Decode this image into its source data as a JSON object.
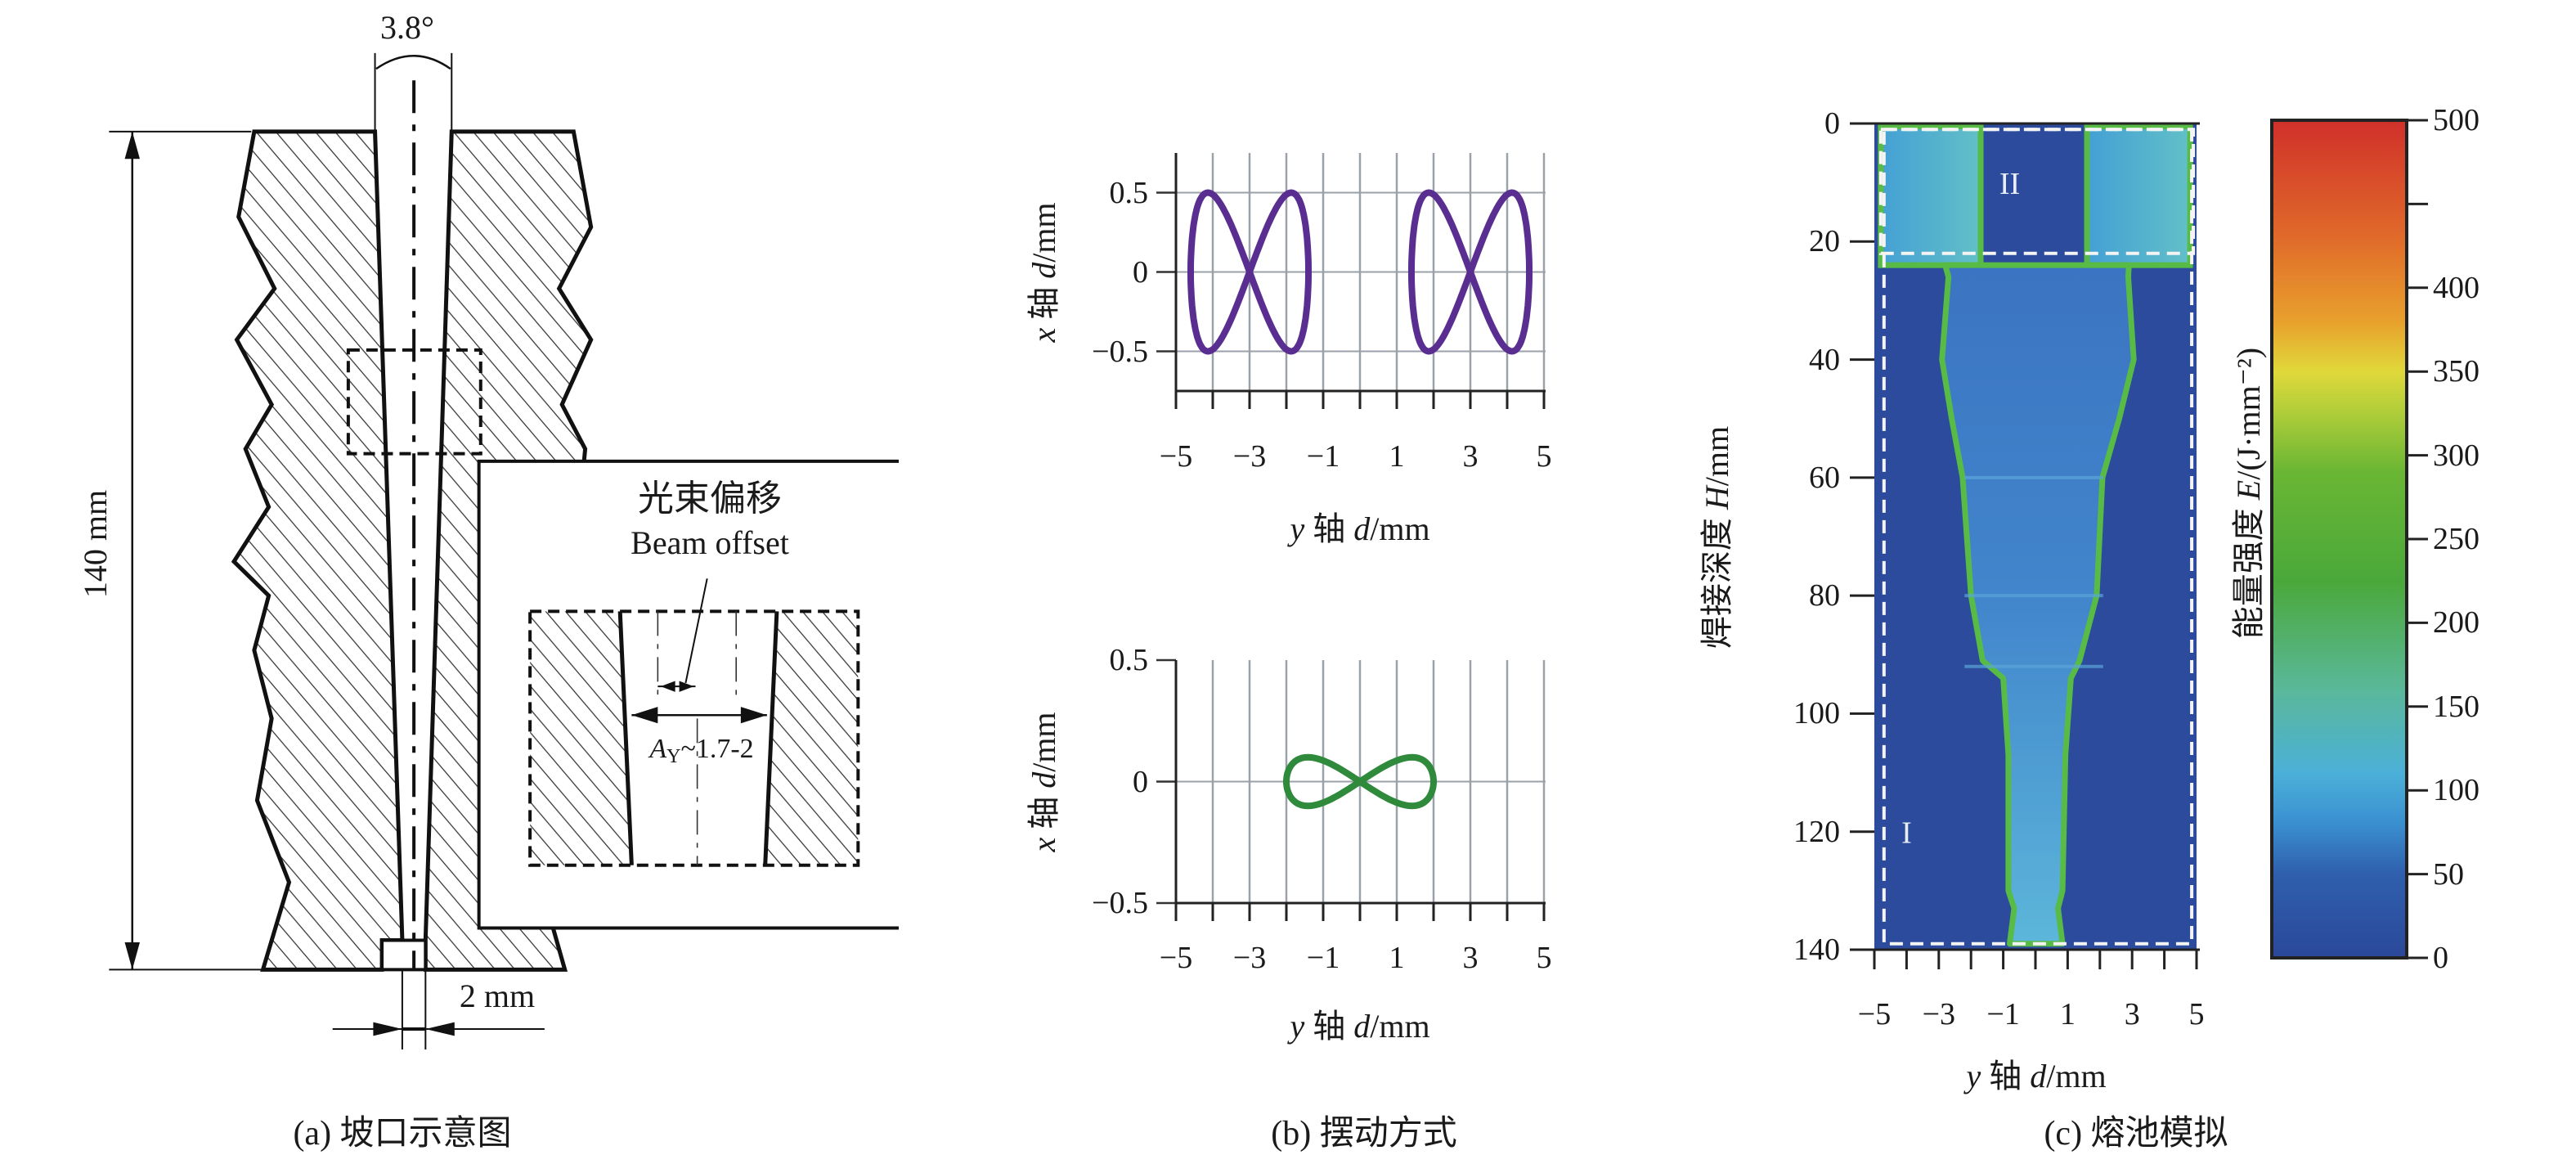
{
  "panel_a": {
    "angle_label": "3.8°",
    "depth_label": "140 mm",
    "inset_label_cn": "光束偏移",
    "inset_label_en": "Beam offset",
    "amplitude_symbol": "A",
    "amplitude_sub": "Y",
    "amplitude_value": "~1.7-2",
    "root_label": "2 mm",
    "caption": "(a) 坡口示意图"
  },
  "panel_b": {
    "caption": "(b) 摆动方式"
  },
  "panel_c": {
    "caption": "(c) 熔池模拟"
  },
  "chart_data": [
    {
      "type": "line",
      "xlabel": "y 轴 d/mm",
      "ylabel": "x 轴 d/mm",
      "xlim": [
        -5,
        5
      ],
      "ylim": [
        -0.75,
        0.75
      ],
      "xticks": [
        -5,
        -4,
        -3,
        -2,
        -1,
        0,
        1,
        2,
        3,
        4,
        5
      ],
      "xtick_labels": [
        -5,
        -3,
        -1,
        1,
        3,
        5
      ],
      "yticks": [
        0.5,
        0,
        -0.5
      ],
      "grid": true,
      "series": [
        {
          "shape": "figure-eight",
          "y_center": -3,
          "y_amplitude": 1.6,
          "x_amplitude": 0.5,
          "color": "#5a2e91"
        },
        {
          "shape": "figure-eight",
          "y_center": 3,
          "y_amplitude": 1.6,
          "x_amplitude": 0.5,
          "color": "#5a2e91"
        }
      ]
    },
    {
      "type": "line",
      "xlabel": "y 轴 d/mm",
      "ylabel": "x 轴 d/mm",
      "xlim": [
        -5,
        5
      ],
      "ylim": [
        -0.5,
        0.5
      ],
      "xticks": [
        -5,
        -4,
        -3,
        -2,
        -1,
        0,
        1,
        2,
        3,
        4,
        5
      ],
      "xtick_labels": [
        -5,
        -3,
        -1,
        1,
        3,
        5
      ],
      "yticks": [
        0.5,
        0,
        -0.5
      ],
      "grid": true,
      "series": [
        {
          "shape": "figure-eight",
          "y_center": 0,
          "y_amplitude": 2,
          "x_amplitude": 0.1,
          "color": "#2f8a3b"
        }
      ]
    },
    {
      "type": "heatmap",
      "xlabel": "y 轴 d/mm",
      "ylabel": "焊接深度 H/mm",
      "xlim": [
        -5,
        5
      ],
      "ylim": [
        0,
        140
      ],
      "y_inverted": true,
      "xticks": [
        -5,
        -4,
        -3,
        -2,
        -1,
        0,
        1,
        2,
        3,
        4,
        5
      ],
      "xtick_labels": [
        -5,
        -3,
        -1,
        1,
        3,
        5
      ],
      "yticks": [
        0,
        20,
        40,
        60,
        80,
        100,
        120,
        140
      ],
      "colorbar": {
        "label": "能量强度 E/(J·mm⁻²)",
        "range": [
          0,
          500
        ],
        "ticks": [
          0,
          50,
          100,
          150,
          200,
          250,
          300,
          350,
          400,
          450,
          500
        ],
        "tick_labels": [
          0,
          50,
          100,
          150,
          200,
          250,
          300,
          350,
          400,
          500
        ],
        "colors": [
          "#2b4899",
          "#3a8fd0",
          "#5ab8c0",
          "#4aa83a",
          "#7cc03a",
          "#e0d83a",
          "#e88a2c",
          "#d0302a"
        ]
      },
      "background_color": "#2c4b9c",
      "edge_color": "#58bb46",
      "top_blocks": {
        "depth": [
          0.5,
          24
        ],
        "y_ranges": [
          [
            -4.8,
            -1.7
          ],
          [
            1.6,
            4.8
          ]
        ]
      },
      "melt_pool_left": [
        [
          24,
          -2.8
        ],
        [
          26,
          -2.7
        ],
        [
          40,
          -2.9
        ],
        [
          50,
          -2.6
        ],
        [
          60,
          -2.26
        ],
        [
          80,
          -2.0
        ],
        [
          91,
          -1.64
        ],
        [
          94,
          -1.0
        ],
        [
          107,
          -0.84
        ],
        [
          130,
          -0.84
        ],
        [
          133,
          -0.66
        ],
        [
          139,
          -0.8
        ]
      ],
      "melt_pool_right": [
        [
          24,
          2.9
        ],
        [
          26,
          2.88
        ],
        [
          40,
          3.05
        ],
        [
          50,
          2.6
        ],
        [
          60,
          2.08
        ],
        [
          80,
          1.9
        ],
        [
          91,
          1.37
        ],
        [
          94,
          1.1
        ],
        [
          107,
          0.93
        ],
        [
          130,
          0.84
        ],
        [
          133,
          0.7
        ],
        [
          139,
          0.84
        ]
      ],
      "regions": [
        {
          "label": "II",
          "depth": [
            1,
            22
          ],
          "y_range": [
            -4.8,
            4.9
          ],
          "label_at": [
            -0.8,
            10
          ]
        },
        {
          "label": "I",
          "depth": [
            1,
            139
          ],
          "y_range": [
            -4.7,
            4.85
          ],
          "label_at": [
            -4.0,
            120
          ]
        }
      ]
    }
  ]
}
